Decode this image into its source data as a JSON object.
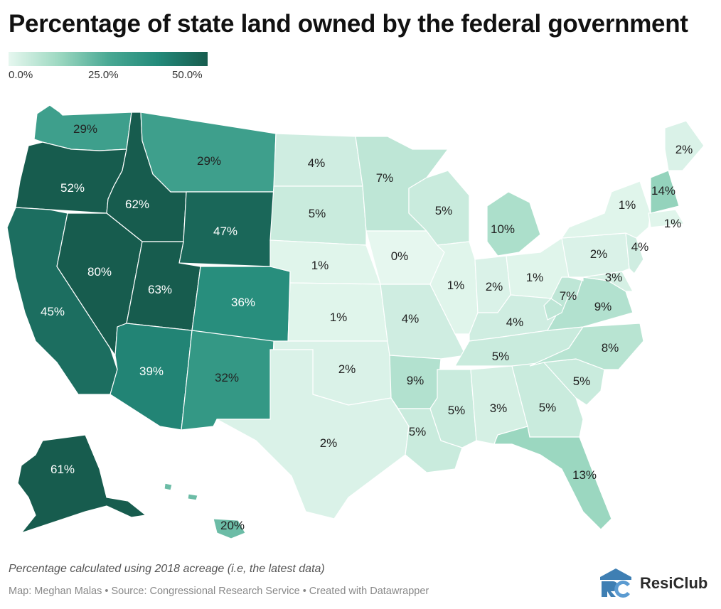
{
  "title": "Percentage of state land owned by the federal government",
  "legend": {
    "labels": [
      "0.0%",
      "25.0%",
      "50.0%"
    ],
    "colors": [
      "#e6f7ef",
      "#9ed9c2",
      "#4aa994",
      "#238a7a",
      "#175c4e"
    ]
  },
  "states": [
    {
      "name": "Washington",
      "label": "29%",
      "value": 29
    },
    {
      "name": "Oregon",
      "label": "52%",
      "value": 52
    },
    {
      "name": "California",
      "label": "45%",
      "value": 45
    },
    {
      "name": "Idaho",
      "label": "62%",
      "value": 62
    },
    {
      "name": "Nevada",
      "label": "80%",
      "value": 80
    },
    {
      "name": "Montana",
      "label": "29%",
      "value": 29
    },
    {
      "name": "Wyoming",
      "label": "47%",
      "value": 47
    },
    {
      "name": "Utah",
      "label": "63%",
      "value": 63
    },
    {
      "name": "Arizona",
      "label": "39%",
      "value": 39
    },
    {
      "name": "Colorado",
      "label": "36%",
      "value": 36
    },
    {
      "name": "New Mexico",
      "label": "32%",
      "value": 32
    },
    {
      "name": "North Dakota",
      "label": "4%",
      "value": 4
    },
    {
      "name": "South Dakota",
      "label": "5%",
      "value": 5
    },
    {
      "name": "Nebraska",
      "label": "1%",
      "value": 1
    },
    {
      "name": "Kansas",
      "label": "1%",
      "value": 1
    },
    {
      "name": "Oklahoma",
      "label": "2%",
      "value": 2
    },
    {
      "name": "Texas",
      "label": "2%",
      "value": 2
    },
    {
      "name": "Minnesota",
      "label": "7%",
      "value": 7
    },
    {
      "name": "Iowa",
      "label": "0%",
      "value": 0
    },
    {
      "name": "Missouri",
      "label": "4%",
      "value": 4
    },
    {
      "name": "Arkansas",
      "label": "9%",
      "value": 9
    },
    {
      "name": "Louisiana",
      "label": "5%",
      "value": 5
    },
    {
      "name": "Wisconsin",
      "label": "5%",
      "value": 5
    },
    {
      "name": "Illinois",
      "label": "1%",
      "value": 1
    },
    {
      "name": "Michigan",
      "label": "10%",
      "value": 10
    },
    {
      "name": "Indiana",
      "label": "2%",
      "value": 2
    },
    {
      "name": "Ohio",
      "label": "1%",
      "value": 1
    },
    {
      "name": "Kentucky",
      "label": "4%",
      "value": 4
    },
    {
      "name": "Tennessee",
      "label": "5%",
      "value": 5
    },
    {
      "name": "Mississippi",
      "label": "5%",
      "value": 5
    },
    {
      "name": "Alabama",
      "label": "3%",
      "value": 3
    },
    {
      "name": "Georgia",
      "label": "5%",
      "value": 5
    },
    {
      "name": "Florida",
      "label": "13%",
      "value": 13
    },
    {
      "name": "South Carolina",
      "label": "5%",
      "value": 5
    },
    {
      "name": "North Carolina",
      "label": "8%",
      "value": 8
    },
    {
      "name": "Virginia",
      "label": "9%",
      "value": 9
    },
    {
      "name": "West Virginia",
      "label": "7%",
      "value": 7
    },
    {
      "name": "Maryland",
      "label": "3%",
      "value": 3
    },
    {
      "name": "Pennsylvania",
      "label": "2%",
      "value": 2
    },
    {
      "name": "New Jersey",
      "label": "4%",
      "value": 4
    },
    {
      "name": "New York",
      "label": "1%",
      "value": 1
    },
    {
      "name": "Massachusetts",
      "label": "1%",
      "value": 1
    },
    {
      "name": "New Hampshire",
      "label": "14%",
      "value": 14
    },
    {
      "name": "Maine",
      "label": "2%",
      "value": 2
    },
    {
      "name": "Alaska",
      "label": "61%",
      "value": 61
    },
    {
      "name": "Hawaii",
      "label": "20%",
      "value": 20
    }
  ],
  "note": "Percentage calculated using 2018 acreage (i.e, the latest data)",
  "byline": "Map: Meghan Malas • Source: Congressional Research Service • Created with Datawrapper",
  "logo": {
    "mark": "RC",
    "text": "ResiClub"
  }
}
